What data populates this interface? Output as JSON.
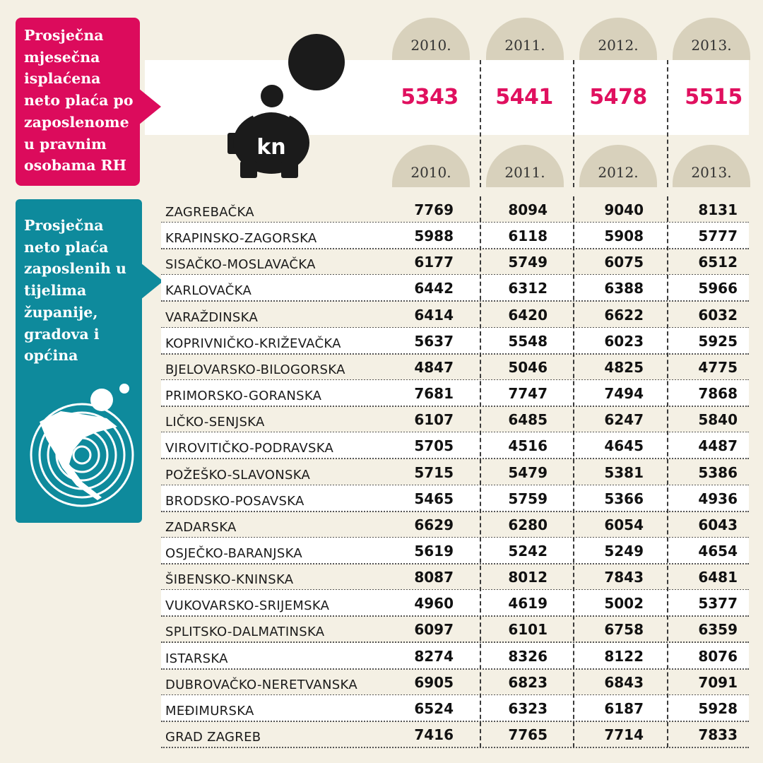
{
  "national": {
    "label": "Prosječna mjesečna isplaćena neto plaća po zaposlenome u pravnim osobama RH",
    "years": [
      "2010.",
      "2011.",
      "2012.",
      "2013."
    ],
    "values": [
      "5343",
      "5441",
      "5478",
      "5515"
    ],
    "icon": "piggy-bank-kn-icon",
    "icon_text": "kn"
  },
  "county": {
    "label": "Prosječna neto plaća zaposlenih u tijelima županije, gradova i općina",
    "years": [
      "2010.",
      "2011.",
      "2012.",
      "2013."
    ],
    "icon": "croatia-map-icon"
  },
  "rows": [
    {
      "name": "ZAGREBAČKA",
      "values": [
        "7769",
        "8094",
        "9040",
        "8131"
      ]
    },
    {
      "name": "KRAPINSKO-ZAGORSKA",
      "values": [
        "5988",
        "6118",
        "5908",
        "5777"
      ]
    },
    {
      "name": "SISAČKO-MOSLAVAČKA",
      "values": [
        "6177",
        "5749",
        "6075",
        "6512"
      ]
    },
    {
      "name": "KARLOVAČKA",
      "values": [
        "6442",
        "6312",
        "6388",
        "5966"
      ]
    },
    {
      "name": "VARAŽDINSKA",
      "values": [
        "6414",
        "6420",
        "6622",
        "6032"
      ]
    },
    {
      "name": "KOPRIVNIČKO-KRIŽEVAČKA",
      "values": [
        "5637",
        "5548",
        "6023",
        "5925"
      ]
    },
    {
      "name": "BJELOVARSKO-BILOGORSKA",
      "values": [
        "4847",
        "5046",
        "4825",
        "4775"
      ]
    },
    {
      "name": "PRIMORSKO-GORANSKA",
      "values": [
        "7681",
        "7747",
        "7494",
        "7868"
      ]
    },
    {
      "name": "LIČKO-SENJSKA",
      "values": [
        "6107",
        "6485",
        "6247",
        "5840"
      ]
    },
    {
      "name": "VIROVITIČKO-PODRAVSKA",
      "values": [
        "5705",
        "4516",
        "4645",
        "4487"
      ]
    },
    {
      "name": "POŽEŠKO-SLAVONSKA",
      "values": [
        "5715",
        "5479",
        "5381",
        "5386"
      ]
    },
    {
      "name": "BRODSKO-POSAVSKA",
      "values": [
        "5465",
        "5759",
        "5366",
        "4936"
      ]
    },
    {
      "name": "ZADARSKA",
      "values": [
        "6629",
        "6280",
        "6054",
        "6043"
      ]
    },
    {
      "name": "OSJEČKO-BARANJSKA",
      "values": [
        "5619",
        "5242",
        "5249",
        "4654"
      ]
    },
    {
      "name": "ŠIBENSKO-KNINSKA",
      "values": [
        "8087",
        "8012",
        "7843",
        "6481"
      ]
    },
    {
      "name": "VUKOVARSKO-SRIJEMSKA",
      "values": [
        "4960",
        "4619",
        "5002",
        "5377"
      ]
    },
    {
      "name": "SPLITSKO-DALMATINSKA",
      "values": [
        "6097",
        "6101",
        "6758",
        "6359"
      ]
    },
    {
      "name": "ISTARSKA",
      "values": [
        "8274",
        "8326",
        "8122",
        "8076"
      ]
    },
    {
      "name": "DUBROVAČKO-NERETVANSKA",
      "values": [
        "6905",
        "6823",
        "6843",
        "7091"
      ]
    },
    {
      "name": "MEĐIMURSKA",
      "values": [
        "6524",
        "6323",
        "6187",
        "5928"
      ]
    },
    {
      "name": "GRAD ZAGREB",
      "values": [
        "7416",
        "7765",
        "7714",
        "7833"
      ]
    }
  ],
  "colors": {
    "pink": "#dc0b5c",
    "teal": "#0e8a9c",
    "value_pink": "#e0105f",
    "background": "#f4f0e4",
    "dome": "#d8d1bc"
  }
}
